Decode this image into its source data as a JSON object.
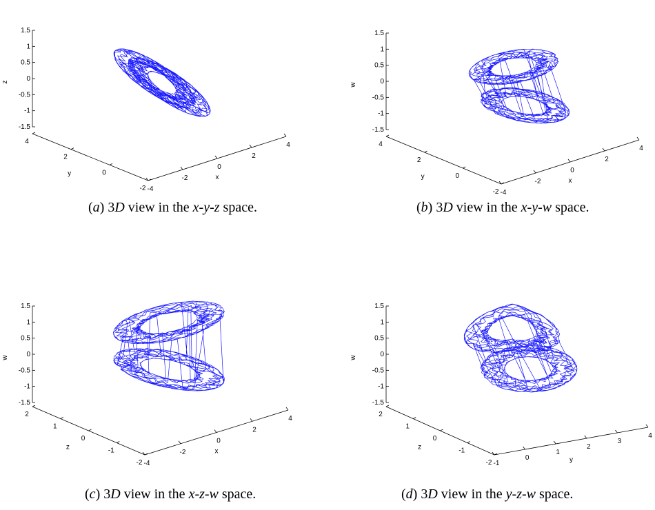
{
  "chart_data": [
    {
      "type": "line",
      "projection": "3d",
      "panel_label": "a",
      "caption": "3D view in the x-y-z space.",
      "axes": [
        "x",
        "y",
        "z"
      ],
      "xlabel": "x",
      "ylabel": "y",
      "zlabel": "z",
      "xticks": [
        "-4",
        "-2",
        "0",
        "2",
        "4"
      ],
      "yticks": [
        "-2",
        "0",
        "2",
        "4"
      ],
      "zticks": [
        "-1.5",
        "-1",
        "-0.5",
        "0",
        "0.5",
        "1",
        "1.5"
      ],
      "xlim": [
        -4,
        4
      ],
      "ylim": [
        -2,
        4
      ],
      "zlim": [
        -1.5,
        1.5
      ],
      "series": [
        {
          "color": "#0000ff",
          "kind": "chaotic attractor trajectory"
        }
      ]
    },
    {
      "type": "line",
      "projection": "3d",
      "panel_label": "b",
      "caption": "3D view in the x-y-w space.",
      "axes": [
        "x",
        "y",
        "w"
      ],
      "xlabel": "x",
      "ylabel": "y",
      "zlabel": "w",
      "xticks": [
        "-4",
        "-2",
        "0",
        "2",
        "4"
      ],
      "yticks": [
        "-2",
        "0",
        "2",
        "4"
      ],
      "zticks": [
        "-1.5",
        "-1",
        "-0.5",
        "0",
        "0.5",
        "1",
        "1.5"
      ],
      "xlim": [
        -4,
        4
      ],
      "ylim": [
        -2,
        4
      ],
      "zlim": [
        -1.5,
        1.5
      ],
      "series": [
        {
          "color": "#0000ff",
          "kind": "chaotic attractor trajectory"
        }
      ]
    },
    {
      "type": "line",
      "projection": "3d",
      "panel_label": "c",
      "caption": "3D view in the x-z-w space.",
      "axes": [
        "x",
        "z",
        "w"
      ],
      "xlabel": "x",
      "ylabel": "z",
      "zlabel": "w",
      "xticks": [
        "-4",
        "-2",
        "0",
        "2",
        "4"
      ],
      "yticks": [
        "-2",
        "-1",
        "0",
        "1",
        "2"
      ],
      "zticks": [
        "-1.5",
        "-1",
        "-0.5",
        "0",
        "0.5",
        "1",
        "1.5"
      ],
      "xlim": [
        -4,
        4
      ],
      "ylim": [
        -2,
        2
      ],
      "zlim": [
        -1.5,
        1.5
      ],
      "series": [
        {
          "color": "#0000ff",
          "kind": "chaotic attractor trajectory"
        }
      ]
    },
    {
      "type": "line",
      "projection": "3d",
      "panel_label": "d",
      "caption": "3D view in the y-z-w space.",
      "axes": [
        "y",
        "z",
        "w"
      ],
      "xlabel": "y",
      "ylabel": "z",
      "zlabel": "w",
      "xticks": [
        "-1",
        "0",
        "1",
        "2",
        "3",
        "4"
      ],
      "yticks": [
        "-2",
        "-1",
        "0",
        "1",
        "2"
      ],
      "zticks": [
        "-1.5",
        "-1",
        "-0.5",
        "0",
        "0.5",
        "1",
        "1.5"
      ],
      "xlim": [
        -1,
        4
      ],
      "ylim": [
        -2,
        2
      ],
      "zlim": [
        -1.5,
        1.5
      ],
      "series": [
        {
          "color": "#0000ff",
          "kind": "chaotic attractor trajectory"
        }
      ]
    }
  ]
}
